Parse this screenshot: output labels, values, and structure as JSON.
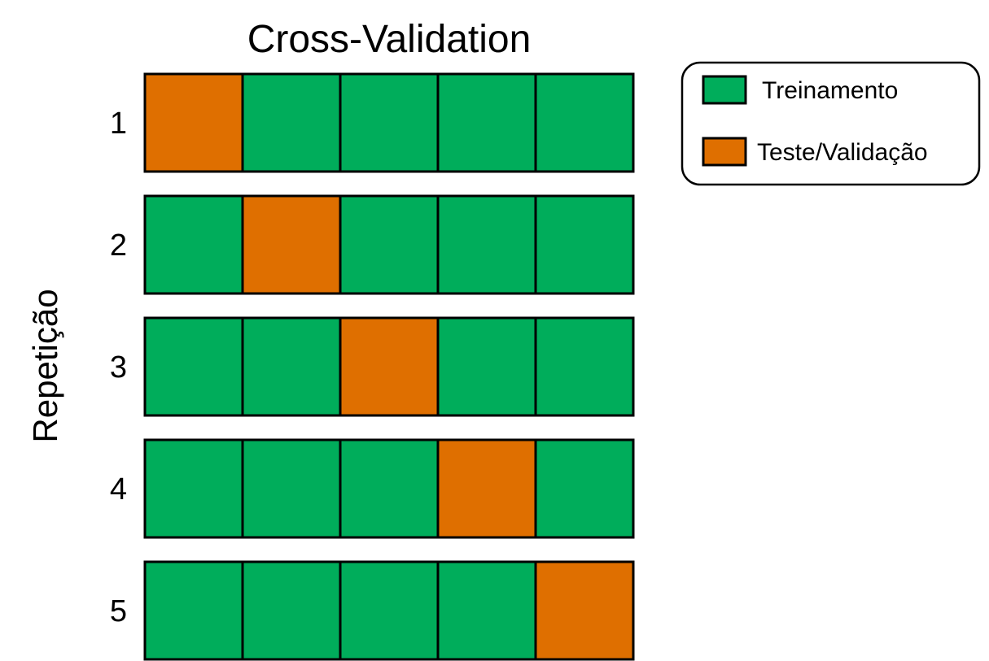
{
  "title": "Cross-Validation",
  "axis_label": "Repetição",
  "colors": {
    "train": "#00AD5B",
    "test": "#DF6F00",
    "border": "#000000"
  },
  "folds": 5,
  "rows": [
    {
      "label": "1",
      "cells": [
        "test",
        "train",
        "train",
        "train",
        "train"
      ]
    },
    {
      "label": "2",
      "cells": [
        "train",
        "test",
        "train",
        "train",
        "train"
      ]
    },
    {
      "label": "3",
      "cells": [
        "train",
        "train",
        "test",
        "train",
        "train"
      ]
    },
    {
      "label": "4",
      "cells": [
        "train",
        "train",
        "train",
        "test",
        "train"
      ]
    },
    {
      "label": "5",
      "cells": [
        "train",
        "train",
        "train",
        "train",
        "test"
      ]
    }
  ],
  "legend": {
    "items": [
      {
        "key": "train",
        "label": "Treinamento"
      },
      {
        "key": "test",
        "label": "Teste/Validação"
      }
    ]
  }
}
